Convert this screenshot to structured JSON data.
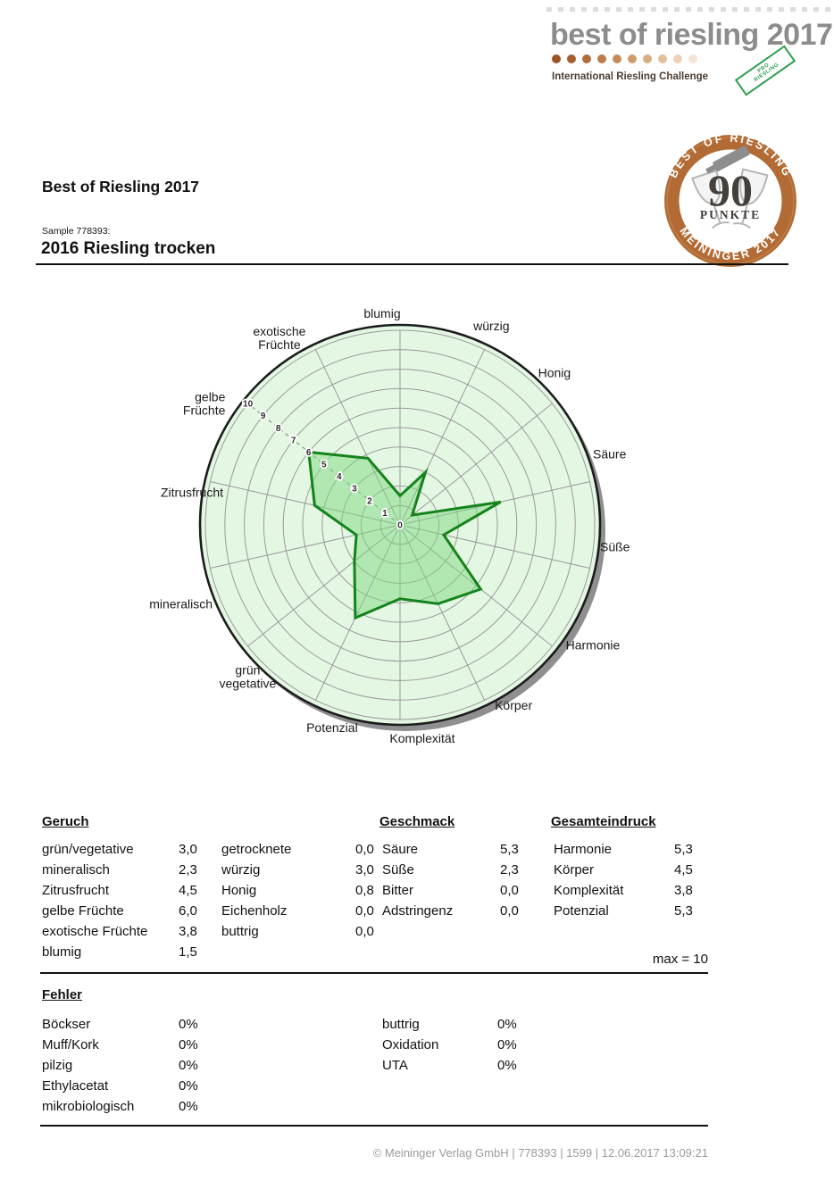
{
  "logo": {
    "title": "best of riesling 2017",
    "subtitle": "International Riesling Challenge",
    "stamp": {
      "line1": "PRO",
      "line2": "RIESLING"
    },
    "dot_colors": [
      "#9c5426",
      "#a65f2e",
      "#b06d3a",
      "#ba7c49",
      "#c48b59",
      "#cd9c6d",
      "#d7ad82",
      "#e1bf9b",
      "#ebd2b8",
      "#f4e4d3"
    ]
  },
  "badge": {
    "top_text": "BEST OF RIESLING",
    "bottom_text": "MEININGER 2017",
    "score": "90",
    "score_label": "PUNKTE",
    "ring_color": "#b26b35"
  },
  "header": {
    "title": "Best of Riesling 2017",
    "sample_label": "Sample 778393:",
    "wine_name": "2016 Riesling trocken"
  },
  "chart_data": {
    "type": "radar",
    "max": 10,
    "rings": 10,
    "scale_labels": [
      "0",
      "1",
      "2",
      "3",
      "4",
      "5",
      "6",
      "7",
      "8",
      "9",
      "10"
    ],
    "scale_axis": "gelbe Früchte",
    "axes": [
      {
        "label": "blumig",
        "lines": [
          "blumig"
        ],
        "value": 1.5
      },
      {
        "label": "würzig",
        "lines": [
          "würzig"
        ],
        "value": 3.0
      },
      {
        "label": "Honig",
        "lines": [
          "Honig"
        ],
        "value": 0.8
      },
      {
        "label": "Säure",
        "lines": [
          "Säure"
        ],
        "value": 5.3
      },
      {
        "label": "Süße",
        "lines": [
          "Süße"
        ],
        "value": 2.3
      },
      {
        "label": "Harmonie",
        "lines": [
          "Harmonie"
        ],
        "value": 5.3
      },
      {
        "label": "Körper",
        "lines": [
          "Körper"
        ],
        "value": 4.5
      },
      {
        "label": "Komplexität",
        "lines": [
          "Komplexität"
        ],
        "value": 3.8
      },
      {
        "label": "Potenzial",
        "lines": [
          "Potenzial"
        ],
        "value": 5.3
      },
      {
        "label": "grün vegetative",
        "lines": [
          "grün",
          "vegetative"
        ],
        "value": 3.0
      },
      {
        "label": "mineralisch",
        "lines": [
          "mineralisch"
        ],
        "value": 2.3
      },
      {
        "label": "Zitrusfrucht",
        "lines": [
          "Zitrusfrucht"
        ],
        "value": 4.5
      },
      {
        "label": "gelbe Früchte",
        "lines": [
          "gelbe",
          "Früchte"
        ],
        "value": 6.0
      },
      {
        "label": "exotische Früchte",
        "lines": [
          "exotische",
          "Früchte"
        ],
        "value": 3.8
      }
    ],
    "colors": {
      "background": "#e3f7e3",
      "ring": "#9a9a9a",
      "outline": "#1c1c1c",
      "shadow": "#8f8f8f",
      "polygon_fill": "#7fd87f",
      "polygon_stroke": "#15831c"
    }
  },
  "tables": {
    "geruch": {
      "heading": "Geruch",
      "col1": [
        [
          "grün/vegetative",
          "3,0"
        ],
        [
          "mineralisch",
          "2,3"
        ],
        [
          "Zitrusfrucht",
          "4,5"
        ],
        [
          "gelbe Früchte",
          "6,0"
        ],
        [
          "exotische Früchte",
          "3,8"
        ],
        [
          "blumig",
          "1,5"
        ]
      ],
      "col2": [
        [
          "getrocknete",
          "0,0"
        ],
        [
          "würzig",
          "3,0"
        ],
        [
          "Honig",
          "0,8"
        ],
        [
          "Eichenholz",
          "0,0"
        ],
        [
          "buttrig",
          "0,0"
        ]
      ]
    },
    "geschmack": {
      "heading": "Geschmack",
      "rows": [
        [
          "Säure",
          "5,3"
        ],
        [
          "Süße",
          "2,3"
        ],
        [
          "Bitter",
          "0,0"
        ],
        [
          "Adstringenz",
          "0,0"
        ]
      ]
    },
    "gesamteindruck": {
      "heading": "Gesamteindruck",
      "rows": [
        [
          "Harmonie",
          "5,3"
        ],
        [
          "Körper",
          "4,5"
        ],
        [
          "Komplexität",
          "3,8"
        ],
        [
          "Potenzial",
          "5,3"
        ]
      ]
    },
    "max_note": "max = 10",
    "fehler": {
      "heading": "Fehler",
      "col1": [
        [
          "Böckser",
          "0%"
        ],
        [
          "Muff/Kork",
          "0%"
        ],
        [
          "pilzig",
          "0%"
        ],
        [
          "Ethylacetat",
          "0%"
        ],
        [
          "mikrobiologisch",
          "0%"
        ]
      ],
      "col2": [
        [
          "buttrig",
          "0%"
        ],
        [
          "Oxidation",
          "0%"
        ],
        [
          "UTA",
          "0%"
        ]
      ]
    }
  },
  "footer": {
    "text": "© Meininger Verlag GmbH | 778393 | 1599 | 12.06.2017 13:09:21"
  }
}
